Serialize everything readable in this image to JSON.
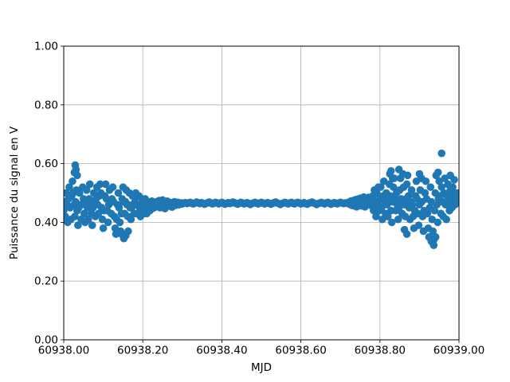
{
  "figure": {
    "background": "#ffffff"
  },
  "chart_data": {
    "type": "scatter",
    "title": "",
    "xlabel": "MJD",
    "ylabel": "Puissance du signal en V",
    "xlim": [
      60938.0,
      60939.0
    ],
    "ylim": [
      0.0,
      1.0
    ],
    "grid": true,
    "legend": "none",
    "grid_color": "#b0b0b0",
    "spine_color": "#000000",
    "marker_color": "#1f77b4",
    "xticks": {
      "values": [
        60938.0,
        60938.2,
        60938.4,
        60938.6,
        60938.8,
        60939.0
      ],
      "labels": [
        "60938.00",
        "60938.20",
        "60938.40",
        "60938.60",
        "60938.80",
        "60939.00"
      ]
    },
    "yticks": {
      "values": [
        0.0,
        0.2,
        0.4,
        0.6,
        0.8,
        1.0
      ],
      "labels": [
        "0.00",
        "0.20",
        "0.40",
        "0.60",
        "0.80",
        "1.00"
      ]
    },
    "x_base": 60938.0,
    "series": [
      {
        "name": "puissance-du-signal",
        "segments": [
          {
            "x_start": 0.0,
            "x_step": 0.002,
            "y": [
              0.44,
              0.47,
              0.42,
              0.5,
              0.46,
              0.4,
              0.48,
              0.52,
              0.45,
              0.41,
              0.49,
              0.54,
              0.5,
              0.46,
              0.42,
              0.47,
              0.51,
              0.44,
              0.39,
              0.45,
              0.5,
              0.46,
              0.41,
              0.46,
              0.52,
              0.48,
              0.43,
              0.4,
              0.47,
              0.51,
              0.45,
              0.41,
              0.48,
              0.53,
              0.47,
              0.43,
              0.39,
              0.45,
              0.5,
              0.46,
              0.42,
              0.48,
              0.52,
              0.46,
              0.43,
              0.49,
              0.53,
              0.5,
              0.45,
              0.41,
              0.38,
              0.44,
              0.49,
              0.53,
              0.48,
              0.44,
              0.4,
              0.46,
              0.51,
              0.47,
              0.43,
              0.48,
              0.52,
              0.47,
              0.42,
              0.38,
              0.36,
              0.41,
              0.46,
              0.5,
              0.45,
              0.4,
              0.37,
              0.43,
              0.48,
              0.52,
              0.47,
              0.43,
              0.47,
              0.51,
              0.46,
              0.42,
              0.46,
              0.5,
              0.45,
              0.41,
              0.45,
              0.49,
              0.46,
              0.43,
              0.47,
              0.5,
              0.46,
              0.43,
              0.46,
              0.49,
              0.45,
              0.42,
              0.46,
              0.48,
              0.45,
              0.43,
              0.46,
              0.48,
              0.45,
              0.43,
              0.46,
              0.47,
              0.45,
              0.44
            ]
          },
          {
            "x_start": 0.22,
            "x_step": 0.003,
            "y": [
              0.455,
              0.472,
              0.448,
              0.468,
              0.452,
              0.47,
              0.458,
              0.474,
              0.45,
              0.466,
              0.476,
              0.46,
              0.447,
              0.462,
              0.472,
              0.456,
              0.468,
              0.46,
              0.452,
              0.466,
              0.47,
              0.458,
              0.464,
              0.468,
              0.46,
              0.463,
              0.466
            ]
          },
          {
            "x_start": 0.3,
            "x_step": 0.004,
            "y": [
              0.463,
              0.465,
              0.467,
              0.464,
              0.466,
              0.468,
              0.465,
              0.463,
              0.466,
              0.469,
              0.466,
              0.464,
              0.467,
              0.465,
              0.462,
              0.464,
              0.467,
              0.469,
              0.466,
              0.463,
              0.465,
              0.468,
              0.466,
              0.463,
              0.466,
              0.468,
              0.465,
              0.462,
              0.465,
              0.467,
              0.464,
              0.466,
              0.469,
              0.467,
              0.464,
              0.462,
              0.465,
              0.468,
              0.466,
              0.463,
              0.465,
              0.467,
              0.464,
              0.461,
              0.464,
              0.466,
              0.468,
              0.465,
              0.463,
              0.466,
              0.468,
              0.466,
              0.463,
              0.465,
              0.467,
              0.465,
              0.462,
              0.464,
              0.467,
              0.469,
              0.466,
              0.464,
              0.461,
              0.464,
              0.466,
              0.468,
              0.465,
              0.463,
              0.466,
              0.468,
              0.465,
              0.463,
              0.466,
              0.468,
              0.466,
              0.463,
              0.465,
              0.467,
              0.464,
              0.462,
              0.465,
              0.467,
              0.469,
              0.466,
              0.464,
              0.461,
              0.464,
              0.466,
              0.468,
              0.465,
              0.463,
              0.466,
              0.468,
              0.465,
              0.462,
              0.464,
              0.467,
              0.465,
              0.463,
              0.466,
              0.468,
              0.466,
              0.464,
              0.466,
              0.465
            ]
          },
          {
            "x_start": 0.72,
            "x_step": 0.003,
            "y": [
              0.468,
              0.462,
              0.472,
              0.458,
              0.474,
              0.456,
              0.477,
              0.453,
              0.479,
              0.461,
              0.482,
              0.456,
              0.47,
              0.486,
              0.453,
              0.476,
              0.462,
              0.485,
              0.47,
              0.458
            ]
          },
          {
            "x_start": 0.78,
            "x_step": 0.002,
            "y": [
              0.46,
              0.49,
              0.44,
              0.51,
              0.47,
              0.42,
              0.5,
              0.46,
              0.52,
              0.44,
              0.48,
              0.52,
              0.45,
              0.41,
              0.49,
              0.54,
              0.47,
              0.43,
              0.5,
              0.46,
              0.42,
              0.48,
              0.53,
              0.49,
              0.44,
              0.4,
              0.47,
              0.52,
              0.55,
              0.48,
              0.44,
              0.5,
              0.46,
              0.41,
              0.45,
              0.51,
              0.55,
              0.48,
              0.43,
              0.47,
              0.52,
              0.46,
              0.42,
              0.48,
              0.53,
              0.56,
              0.49,
              0.45,
              0.41,
              0.47,
              0.51,
              0.46,
              0.42,
              0.38,
              0.44,
              0.49,
              0.54,
              0.48,
              0.43,
              0.39,
              0.46,
              0.51,
              0.55,
              0.47,
              0.42,
              0.37,
              0.44,
              0.5,
              0.54,
              0.48,
              0.43,
              0.38,
              0.35,
              0.45,
              0.52,
              0.47,
              0.41,
              0.37,
              0.34,
              0.44,
              0.5,
              0.56,
              0.46,
              0.4,
              0.48,
              0.54,
              0.49,
              0.43,
              0.52,
              0.47,
              0.42,
              0.5,
              0.55,
              0.46,
              0.41,
              0.49,
              0.53,
              0.47,
              0.44,
              0.51,
              0.48,
              0.45,
              0.52,
              0.47,
              0.5,
              0.46,
              0.49,
              0.47,
              0.5,
              0.48
            ]
          }
        ],
        "extra_points": [
          [
            0.027,
            0.57
          ],
          [
            0.029,
            0.595
          ],
          [
            0.031,
            0.58
          ],
          [
            0.034,
            0.56
          ],
          [
            0.146,
            0.36
          ],
          [
            0.152,
            0.345
          ],
          [
            0.157,
            0.355
          ],
          [
            0.163,
            0.37
          ],
          [
            0.825,
            0.565
          ],
          [
            0.828,
            0.575
          ],
          [
            0.832,
            0.55
          ],
          [
            0.848,
            0.58
          ],
          [
            0.858,
            0.565
          ],
          [
            0.862,
            0.375
          ],
          [
            0.868,
            0.36
          ],
          [
            0.9,
            0.565
          ],
          [
            0.905,
            0.55
          ],
          [
            0.93,
            0.335
          ],
          [
            0.936,
            0.322
          ],
          [
            0.941,
            0.35
          ],
          [
            0.947,
            0.57
          ],
          [
            0.956,
            0.635
          ],
          [
            0.978,
            0.56
          ],
          [
            0.988,
            0.545
          ]
        ]
      }
    ]
  }
}
